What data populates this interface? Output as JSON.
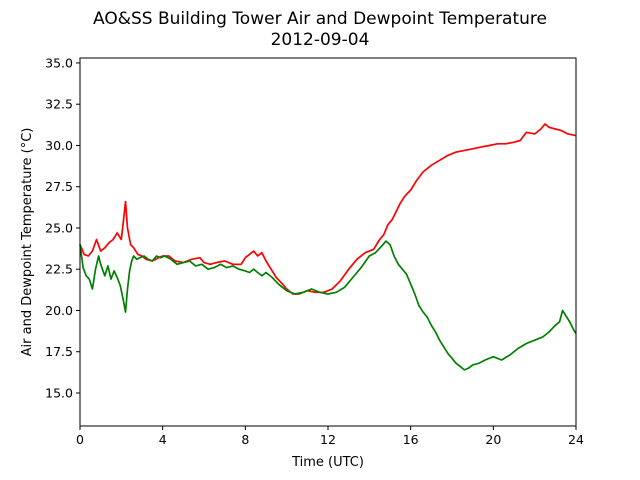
{
  "chart_data": {
    "type": "line",
    "title": "AO&SS Building Tower Air and Dewpoint Temperature",
    "subtitle": "2012-09-04",
    "xlabel": "Time (UTC)",
    "ylabel": "Air and Dewpoint Temperature (°C)",
    "xlim": [
      0,
      24
    ],
    "ylim": [
      13.0,
      35.3
    ],
    "x_ticks": [
      0,
      4,
      8,
      12,
      16,
      20,
      24
    ],
    "x_tick_labels": [
      "0",
      "4",
      "8",
      "12",
      "16",
      "20",
      "24"
    ],
    "y_ticks": [
      15.0,
      17.5,
      20.0,
      22.5,
      25.0,
      27.5,
      30.0,
      32.5,
      35.0
    ],
    "y_tick_labels": [
      "15.0",
      "17.5",
      "20.0",
      "22.5",
      "25.0",
      "27.5",
      "30.0",
      "32.5",
      "35.0"
    ],
    "grid": false,
    "colors": {
      "air": "#ff0000",
      "dewpoint": "#008000"
    },
    "series": [
      {
        "color": "#ff0000",
        "x": [
          0,
          0.2,
          0.4,
          0.6,
          0.8,
          1.0,
          1.2,
          1.4,
          1.6,
          1.8,
          2.0,
          2.1,
          2.2,
          2.3,
          2.45,
          2.6,
          2.8,
          3.0,
          3.2,
          3.5,
          3.8,
          4.0,
          4.3,
          4.6,
          5.0,
          5.4,
          5.8,
          6.0,
          6.3,
          6.6,
          7.0,
          7.4,
          7.8,
          8.0,
          8.2,
          8.4,
          8.6,
          8.8,
          9.0,
          9.2,
          9.5,
          9.8,
          10.0,
          10.3,
          10.6,
          11.0,
          11.4,
          11.8,
          12.2,
          12.6,
          13.0,
          13.4,
          13.8,
          14.2,
          14.5,
          14.7,
          14.9,
          15.1,
          15.3,
          15.5,
          15.7,
          16.0,
          16.3,
          16.6,
          17.0,
          17.4,
          17.8,
          18.2,
          18.6,
          19.0,
          19.4,
          19.8,
          20.2,
          20.6,
          21.0,
          21.3,
          21.6,
          22.0,
          22.3,
          22.5,
          22.7,
          23.0,
          23.3,
          23.6,
          24.0
        ],
        "values": [
          24.0,
          23.4,
          23.3,
          23.6,
          24.3,
          23.6,
          23.8,
          24.1,
          24.3,
          24.7,
          24.3,
          25.4,
          26.6,
          25.0,
          24.0,
          23.8,
          23.4,
          23.3,
          23.1,
          23.0,
          23.2,
          23.3,
          23.3,
          23.0,
          22.9,
          23.1,
          23.2,
          22.9,
          22.8,
          22.9,
          23.0,
          22.8,
          22.8,
          23.2,
          23.4,
          23.6,
          23.3,
          23.5,
          23.0,
          22.6,
          22.0,
          21.6,
          21.3,
          21.0,
          21.0,
          21.2,
          21.1,
          21.1,
          21.3,
          21.8,
          22.5,
          23.1,
          23.5,
          23.7,
          24.3,
          24.6,
          25.2,
          25.5,
          26.0,
          26.5,
          26.9,
          27.3,
          27.9,
          28.4,
          28.8,
          29.1,
          29.4,
          29.6,
          29.7,
          29.8,
          29.9,
          30.0,
          30.1,
          30.1,
          30.2,
          30.3,
          30.8,
          30.7,
          31.0,
          31.3,
          31.1,
          31.0,
          30.9,
          30.7,
          30.6
        ]
      },
      {
        "color": "#008000",
        "x": [
          0,
          0.15,
          0.3,
          0.45,
          0.6,
          0.75,
          0.9,
          1.0,
          1.2,
          1.35,
          1.5,
          1.65,
          1.8,
          1.95,
          2.1,
          2.2,
          2.3,
          2.4,
          2.5,
          2.6,
          2.75,
          2.9,
          3.1,
          3.3,
          3.5,
          3.7,
          3.9,
          4.1,
          4.4,
          4.7,
          5.0,
          5.3,
          5.6,
          5.9,
          6.2,
          6.5,
          6.8,
          7.1,
          7.4,
          7.7,
          8.0,
          8.2,
          8.4,
          8.6,
          8.8,
          9.0,
          9.3,
          9.6,
          10.0,
          10.4,
          10.8,
          11.2,
          11.6,
          12.0,
          12.4,
          12.8,
          13.2,
          13.6,
          14.0,
          14.3,
          14.6,
          14.8,
          15.0,
          15.2,
          15.4,
          15.6,
          15.8,
          16.0,
          16.2,
          16.4,
          16.6,
          16.8,
          17.0,
          17.2,
          17.4,
          17.6,
          17.8,
          18.0,
          18.2,
          18.4,
          18.6,
          18.8,
          19.0,
          19.3,
          19.6,
          20.0,
          20.4,
          20.8,
          21.2,
          21.6,
          22.0,
          22.4,
          22.7,
          23.0,
          23.2,
          23.35,
          23.5,
          23.7,
          23.9,
          24.0
        ],
        "values": [
          24.0,
          22.6,
          22.1,
          21.9,
          21.3,
          22.5,
          23.3,
          22.8,
          22.1,
          22.7,
          21.9,
          22.4,
          22.0,
          21.5,
          20.6,
          19.9,
          21.3,
          22.4,
          23.0,
          23.3,
          23.1,
          23.2,
          23.3,
          23.1,
          23.0,
          23.3,
          23.2,
          23.3,
          23.1,
          22.8,
          22.9,
          23.0,
          22.7,
          22.8,
          22.5,
          22.6,
          22.8,
          22.6,
          22.7,
          22.5,
          22.4,
          22.3,
          22.5,
          22.3,
          22.1,
          22.3,
          22.0,
          21.6,
          21.2,
          21.0,
          21.1,
          21.3,
          21.1,
          21.0,
          21.1,
          21.4,
          22.0,
          22.6,
          23.3,
          23.5,
          23.9,
          24.2,
          24.0,
          23.3,
          22.8,
          22.5,
          22.2,
          21.6,
          21.0,
          20.3,
          19.9,
          19.6,
          19.1,
          18.7,
          18.2,
          17.8,
          17.4,
          17.1,
          16.8,
          16.6,
          16.4,
          16.5,
          16.7,
          16.8,
          17.0,
          17.2,
          17.0,
          17.3,
          17.7,
          18.0,
          18.2,
          18.4,
          18.7,
          19.1,
          19.3,
          20.0,
          19.7,
          19.3,
          18.8,
          18.6
        ]
      }
    ]
  }
}
